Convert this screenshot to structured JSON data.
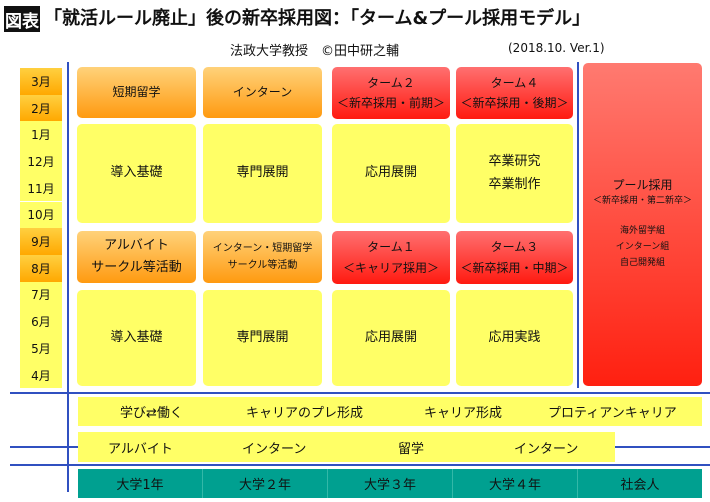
{
  "header": {
    "tag": "図表",
    "title": "「就活ルール廃止」後の新卒採用図：「ターム&プール採用モデル」",
    "author": "法政大学教授　©田中研之輔",
    "version": "(2018.10. Ver.1)"
  },
  "months": [
    {
      "label": "3月",
      "highlight": true
    },
    {
      "label": "2月",
      "highlight": true
    },
    {
      "label": "1月",
      "highlight": false
    },
    {
      "label": "12月",
      "highlight": false
    },
    {
      "label": "11月",
      "highlight": false
    },
    {
      "label": "10月",
      "highlight": false
    },
    {
      "label": "9月",
      "highlight": true
    },
    {
      "label": "8月",
      "highlight": true
    },
    {
      "label": "7月",
      "highlight": false
    },
    {
      "label": "6月",
      "highlight": false
    },
    {
      "label": "5月",
      "highlight": false
    },
    {
      "label": "4月",
      "highlight": false
    }
  ],
  "grid": {
    "r1": [
      "短期留学",
      "インターン",
      "ターム２",
      "＜新卒採用・前期＞",
      "ターム４",
      "＜新卒採用・後期＞"
    ],
    "r2": [
      "導入基礎",
      "専門展開",
      "応用展開",
      "卒業研究",
      "卒業制作"
    ],
    "r3": [
      "アルバイト",
      "サークル等活動",
      "インターン・短期留学",
      "サークル等活動",
      "ターム１",
      "＜キャリア採用＞",
      "ターム３",
      "＜新卒採用・中期＞"
    ],
    "r4": [
      "導入基礎",
      "専門展開",
      "応用展開",
      "応用実践"
    ]
  },
  "pool": {
    "title": "プール採用",
    "subtitle": "＜新卒採用・第二新卒＞",
    "groups": [
      "海外留学組",
      "インターン組",
      "自己開発組"
    ]
  },
  "career_band": [
    "学び⇄働く",
    "キャリアのプレ形成",
    "キャリア形成",
    "プロティアンキャリア"
  ],
  "activity_band": [
    "アルバイト",
    "インターン",
    "留学",
    "インターン"
  ],
  "years": [
    "大学1年",
    "大学２年",
    "大学３年",
    "大学４年",
    "社会人"
  ],
  "colors": {
    "orange": "#ffa800",
    "yellow": "#ffff66",
    "red": "#ff1a10",
    "teal": "#00a090",
    "line": "#3050c0"
  }
}
